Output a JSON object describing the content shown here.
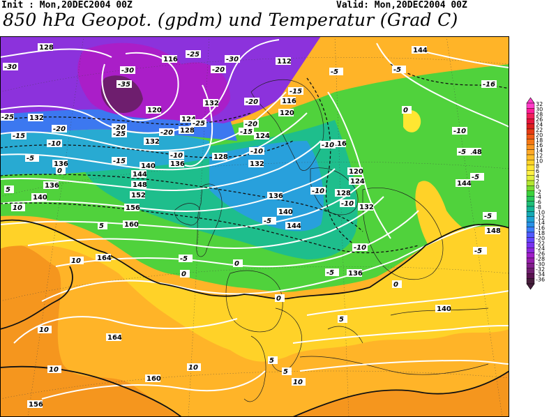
{
  "header": {
    "init": "Init : Mon,20DEC2004 00Z",
    "valid": "Valid: Mon,20DEC2004 00Z",
    "title": "850 hPa Geopot. (gpdm) und Temperatur (Grad C)"
  },
  "colorbar": {
    "levels": [
      "32",
      "30",
      "28",
      "26",
      "24",
      "22",
      "20",
      "18",
      "16",
      "14",
      "12",
      "10",
      "8",
      "6",
      "4",
      "2",
      "0",
      "-2",
      "-4",
      "-6",
      "-8",
      "-10",
      "-12",
      "-14",
      "-16",
      "-18",
      "-20",
      "-22",
      "-24",
      "-26",
      "-28",
      "-30",
      "-32",
      "-34",
      "-36"
    ],
    "colors": [
      "#ff3cc8",
      "#ff1e96",
      "#f01e5a",
      "#e6143c",
      "#dc1e1e",
      "#e63c14",
      "#f05a14",
      "#f57814",
      "#fa961e",
      "#ffaa28",
      "#ffbe28",
      "#ffd228",
      "#ffe632",
      "#fff046",
      "#e1f03c",
      "#b4e632",
      "#78dc32",
      "#3cd23c",
      "#28c85a",
      "#1ebe78",
      "#14b496",
      "#14aab4",
      "#1ea0d2",
      "#2891e6",
      "#3c7dfa",
      "#505aff",
      "#6446ff",
      "#7832f0",
      "#8c28dc",
      "#a01ec8",
      "#961eaa",
      "#821e8c",
      "#6e1e6e",
      "#5a1450",
      "#461e3c"
    ]
  },
  "map": {
    "geopotential_labels": [
      "128",
      "116",
      "112",
      "144",
      "132",
      "120",
      "124",
      "132",
      "128",
      "116",
      "124",
      "120",
      "124",
      "132",
      "136",
      "128",
      "132",
      "116",
      "120",
      "124",
      "128",
      "132",
      "136",
      "140",
      "144",
      "148",
      "152",
      "156",
      "160",
      "164",
      "164",
      "160",
      "156",
      "140",
      "136",
      "132",
      "136",
      "136",
      "140",
      "144",
      "148",
      "144",
      "148",
      "140"
    ],
    "temperature_labels": [
      "-30",
      "-25",
      "-30",
      "-20",
      "-20",
      "-30",
      "-35",
      "-20",
      "-25",
      "-25",
      "-20",
      "-15",
      "-20",
      "-25",
      "-20",
      "-15",
      "-5",
      "-5",
      "-15",
      "-10",
      "-10",
      "-5",
      "-10",
      "-10",
      "-5",
      "-16",
      "-10",
      "-15",
      "0",
      "-10",
      "-5",
      "-5",
      "-5",
      "-10",
      "-10",
      "-5",
      "-5",
      "0",
      "0",
      "5",
      "10",
      "5",
      "10",
      "10",
      "10",
      "10",
      "0",
      "5",
      "5",
      "10",
      "0",
      "-5",
      "0",
      "5"
    ]
  }
}
